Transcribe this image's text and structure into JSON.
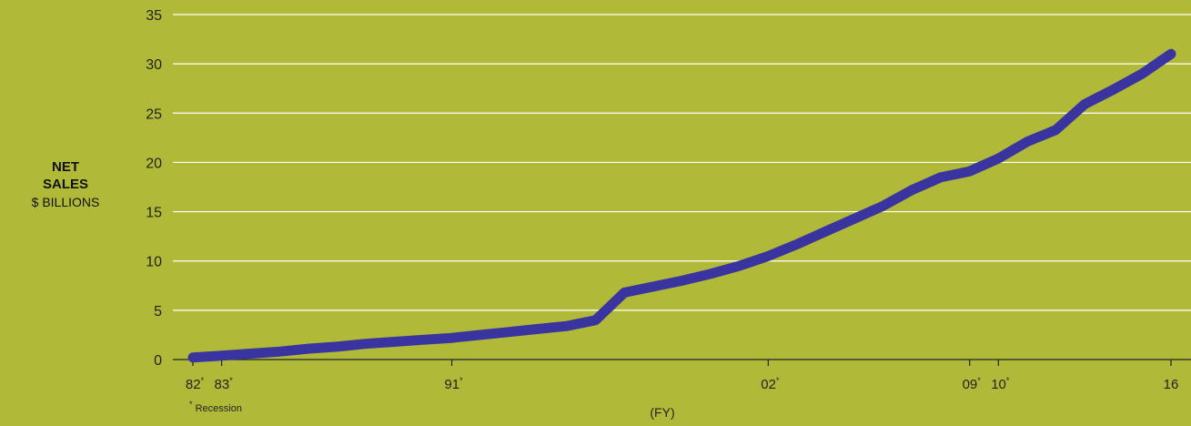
{
  "chart_data": {
    "type": "line",
    "ylabel_main": [
      "NET",
      "SALES"
    ],
    "ylabel_sub": "$ BILLIONS",
    "xlabel": "(FY)",
    "footnote": {
      "mark": "*",
      "text": " Recession"
    },
    "ylim": [
      0,
      35
    ],
    "y_ticks": [
      0,
      5,
      10,
      15,
      20,
      25,
      30,
      35
    ],
    "x_range": [
      1982,
      2016
    ],
    "x_ticks": [
      {
        "x": 1982,
        "label": "82",
        "recession": true
      },
      {
        "x": 1983,
        "label": "83",
        "recession": true
      },
      {
        "x": 1991,
        "label": "91",
        "recession": true
      },
      {
        "x": 2002,
        "label": "02",
        "recession": true
      },
      {
        "x": 2009,
        "label": "09",
        "recession": true
      },
      {
        "x": 2010,
        "label": "10",
        "recession": true
      },
      {
        "x": 2016,
        "label": "16",
        "recession": false
      }
    ],
    "grid": true,
    "series": [
      {
        "color": "#3a34a0",
        "points": [
          [
            1982,
            0.2
          ],
          [
            1983,
            0.4
          ],
          [
            1984,
            0.6
          ],
          [
            1985,
            0.8
          ],
          [
            1986,
            1.1
          ],
          [
            1987,
            1.3
          ],
          [
            1988,
            1.6
          ],
          [
            1989,
            1.8
          ],
          [
            1990,
            2.0
          ],
          [
            1991,
            2.2
          ],
          [
            1992,
            2.5
          ],
          [
            1993,
            2.8
          ],
          [
            1994,
            3.1
          ],
          [
            1995,
            3.4
          ],
          [
            1996,
            4.0
          ],
          [
            1997,
            6.8
          ],
          [
            1998,
            7.4
          ],
          [
            1999,
            8.0
          ],
          [
            2000,
            8.7
          ],
          [
            2001,
            9.5
          ],
          [
            2002,
            10.5
          ],
          [
            2003,
            11.7
          ],
          [
            2004,
            13.0
          ],
          [
            2005,
            14.3
          ],
          [
            2006,
            15.6
          ],
          [
            2007,
            17.2
          ],
          [
            2008,
            18.5
          ],
          [
            2009,
            19.1
          ],
          [
            2010,
            20.4
          ],
          [
            2011,
            22.1
          ],
          [
            2012,
            23.3
          ],
          [
            2013,
            25.9
          ],
          [
            2014,
            27.4
          ],
          [
            2015,
            29.0
          ],
          [
            2016,
            31.0
          ]
        ]
      }
    ]
  }
}
